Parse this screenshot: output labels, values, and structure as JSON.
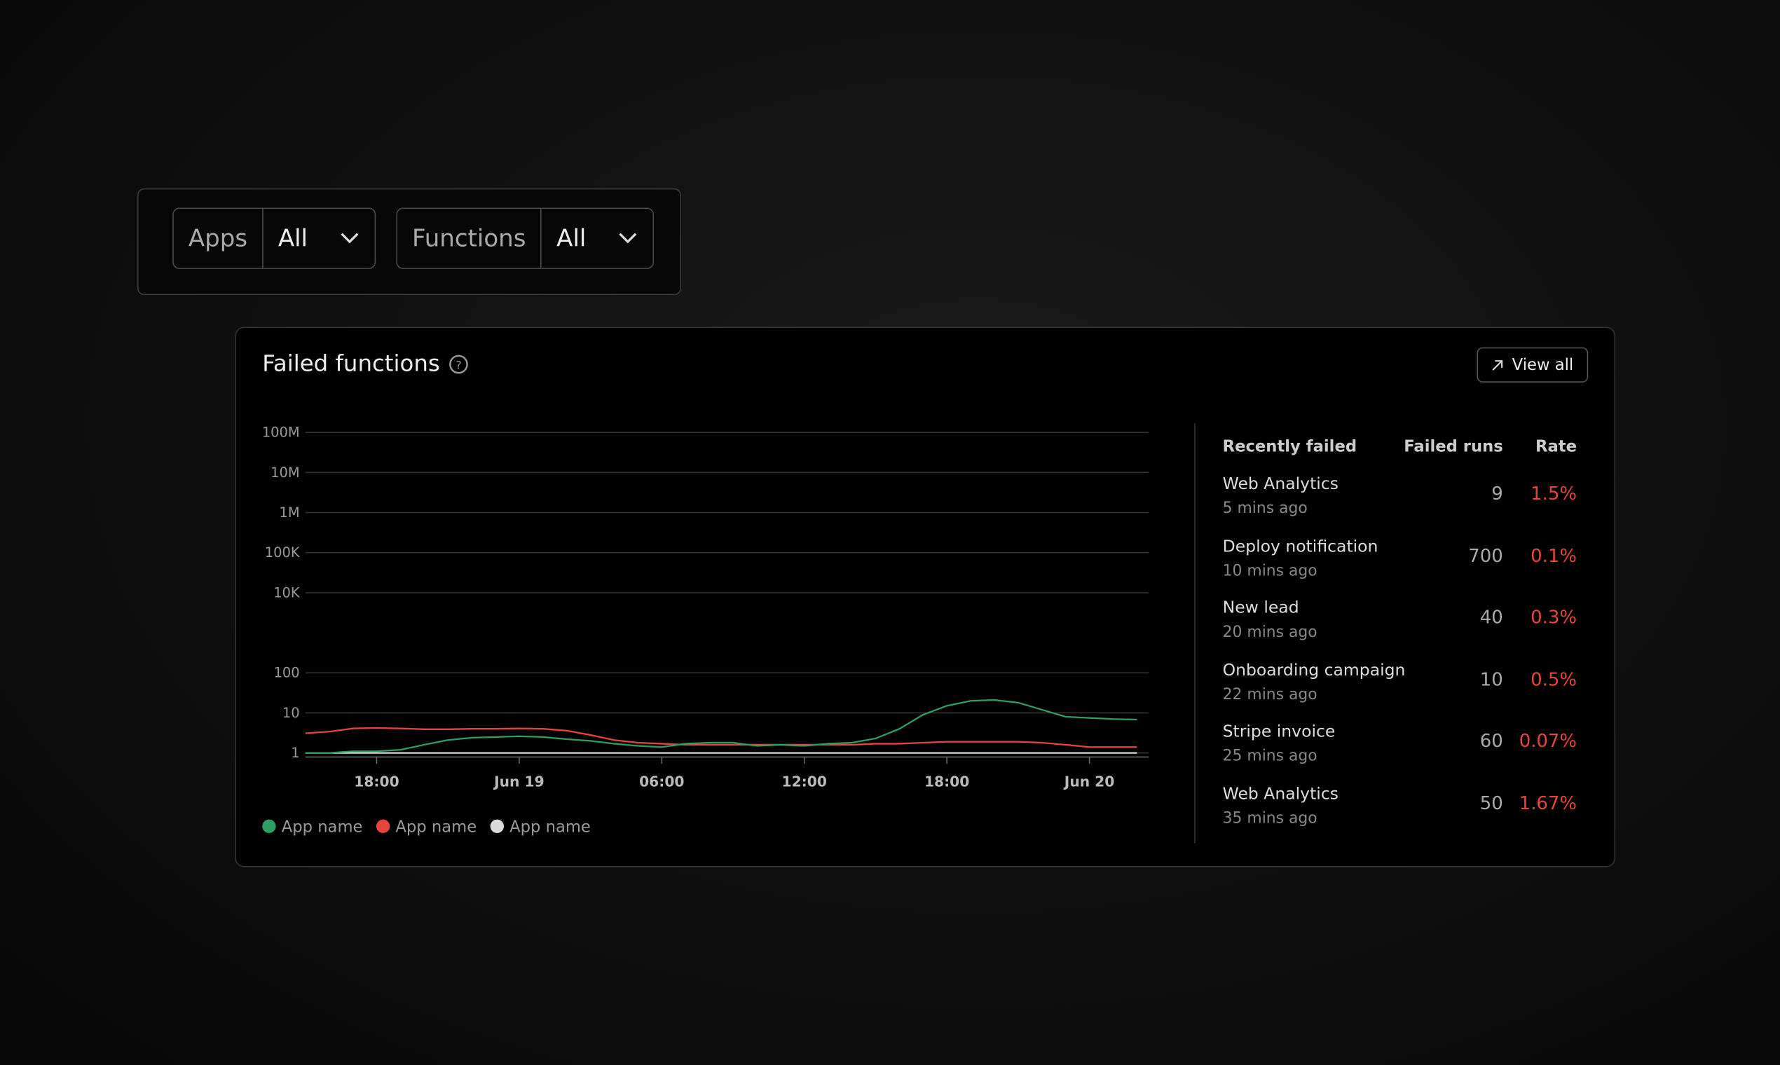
{
  "filters": [
    {
      "label": "Apps",
      "value": "All"
    },
    {
      "label": "Functions",
      "value": "All"
    }
  ],
  "panel": {
    "title": "Failed functions",
    "button": "View all"
  },
  "chart_data": {
    "type": "line",
    "scale": "log",
    "grid": true,
    "x": [
      15,
      16,
      17,
      18,
      19,
      20,
      21,
      22,
      23,
      24,
      25,
      26,
      27,
      28,
      29,
      30,
      31,
      32,
      33,
      34,
      35,
      36,
      37,
      38,
      39,
      40,
      41,
      42,
      43,
      44,
      45,
      46,
      47,
      48,
      49,
      50
    ],
    "xlim": [
      15,
      50.5
    ],
    "xticks": [
      {
        "value": 18,
        "label": "18:00"
      },
      {
        "value": 24,
        "label": "Jun 19"
      },
      {
        "value": 30,
        "label": "06:00"
      },
      {
        "value": 36,
        "label": "12:00"
      },
      {
        "value": 42,
        "label": "18:00"
      },
      {
        "value": 48,
        "label": "Jun 20"
      }
    ],
    "ylim": [
      0.9,
      100000000
    ],
    "yticks": [
      1,
      10,
      100,
      {
        "value": 10000,
        "label": "10K"
      },
      {
        "value": 100000,
        "label": "100K"
      },
      {
        "value": 1000000,
        "label": "1M"
      },
      {
        "value": 10000000,
        "label": "10M"
      },
      {
        "value": 100000000,
        "label": "100M"
      }
    ],
    "series": [
      {
        "name": "App name",
        "color": "#2e9e63",
        "values": [
          1.0,
          1.0,
          1.1,
          1.1,
          1.2,
          1.6,
          2.1,
          2.4,
          2.5,
          2.6,
          2.5,
          2.2,
          2.0,
          1.7,
          1.5,
          1.4,
          1.7,
          1.8,
          1.8,
          1.5,
          1.6,
          1.5,
          1.7,
          1.8,
          2.3,
          4.0,
          9,
          15,
          20,
          21,
          18,
          12,
          8,
          7.5,
          7,
          6.8
        ]
      },
      {
        "name": "App name",
        "color": "#e5453c",
        "values": [
          3.1,
          3.4,
          4.1,
          4.2,
          4.1,
          3.9,
          3.9,
          4.0,
          4.0,
          4.1,
          4.0,
          3.6,
          2.8,
          2.1,
          1.8,
          1.7,
          1.6,
          1.6,
          1.6,
          1.6,
          1.6,
          1.6,
          1.6,
          1.6,
          1.7,
          1.7,
          1.8,
          1.9,
          1.9,
          1.9,
          1.9,
          1.8,
          1.6,
          1.4,
          1.4,
          1.4
        ]
      },
      {
        "name": "App name",
        "color": "#d9d9d9",
        "values": [
          1,
          1,
          1,
          1,
          1,
          1,
          1,
          1,
          1,
          1,
          1,
          1,
          1,
          1,
          1,
          1,
          1,
          1,
          1,
          1,
          1,
          1,
          1,
          1,
          1,
          1,
          1,
          1,
          1,
          1,
          1,
          1,
          1,
          1,
          1,
          1
        ]
      }
    ]
  },
  "table": {
    "headers": [
      "Recently failed",
      "Failed runs",
      "Rate"
    ],
    "rows": [
      {
        "name": "Web Analytics",
        "time": "5 mins ago",
        "runs": 9,
        "rate": "1.5%"
      },
      {
        "name": "Deploy notification",
        "time": "10 mins ago",
        "runs": 700,
        "rate": "0.1%"
      },
      {
        "name": "New lead",
        "time": "20 mins ago",
        "runs": 40,
        "rate": "0.3%"
      },
      {
        "name": "Onboarding campaign",
        "time": "22 mins ago",
        "runs": 10,
        "rate": "0.5%"
      },
      {
        "name": "Stripe invoice",
        "time": "25 mins ago",
        "runs": 60,
        "rate": "0.07%"
      },
      {
        "name": "Web Analytics",
        "time": "35 mins ago",
        "runs": 50,
        "rate": "1.67%"
      }
    ]
  }
}
